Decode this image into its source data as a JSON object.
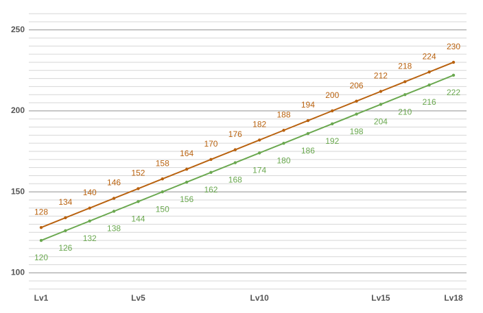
{
  "chart_data": {
    "type": "line",
    "categories": [
      "Lv1",
      null,
      null,
      null,
      "Lv5",
      null,
      null,
      null,
      null,
      "Lv10",
      null,
      null,
      null,
      null,
      "Lv15",
      null,
      null,
      "Lv18"
    ],
    "series": [
      {
        "name": null,
        "color": "#b9620f",
        "values": [
          128,
          134,
          140,
          146,
          152,
          158,
          164,
          170,
          176,
          182,
          188,
          194,
          200,
          206,
          212,
          218,
          224,
          230
        ]
      },
      {
        "name": null,
        "color": "#6aa84f",
        "values": [
          120,
          126,
          132,
          138,
          144,
          150,
          156,
          162,
          168,
          174,
          180,
          186,
          192,
          198,
          204,
          210,
          216,
          222
        ]
      }
    ],
    "ylim": [
      90,
      260
    ],
    "yticks": [
      100,
      150,
      200,
      250
    ],
    "grid": true,
    "minor_grid_step": 5
  }
}
